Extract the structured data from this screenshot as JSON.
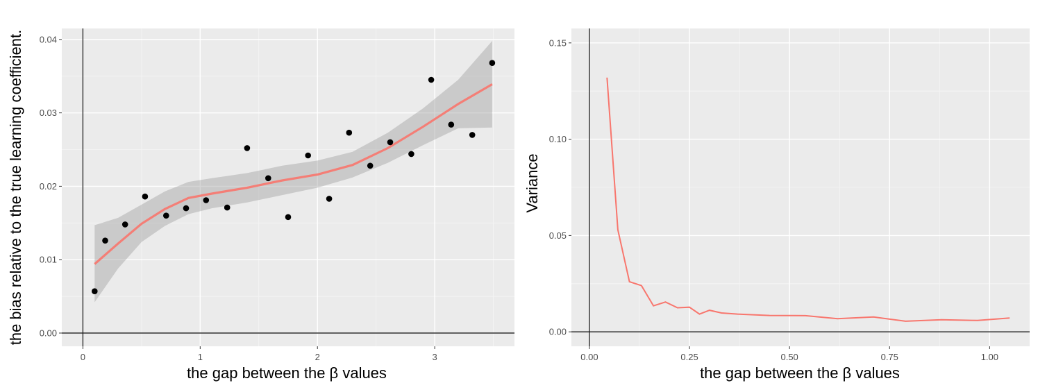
{
  "chart_data": [
    {
      "type": "scatter",
      "xlabel": "the gap between the β values",
      "ylabel": "the bias relative to the true learning coefficient.",
      "xlim": [
        -0.18,
        3.68
      ],
      "ylim": [
        -0.0018,
        0.0415
      ],
      "x_ticks": [
        0,
        1,
        2,
        3
      ],
      "x_tick_labels": [
        "0",
        "1",
        "2",
        "3"
      ],
      "y_ticks": [
        0,
        0.01,
        0.02,
        0.03,
        0.04
      ],
      "y_tick_labels": [
        "0.00",
        "0.01",
        "0.02",
        "0.03",
        "0.04"
      ],
      "colors": {
        "smooth": "#f8766d",
        "ribbon": "#999999",
        "points": "#000000"
      },
      "series": [
        {
          "name": "points",
          "x": [
            0.1,
            0.19,
            0.36,
            0.53,
            0.71,
            0.88,
            1.05,
            1.23,
            1.4,
            1.58,
            1.75,
            1.92,
            2.1,
            2.27,
            2.45,
            2.62,
            2.8,
            2.97,
            3.14,
            3.32,
            3.49
          ],
          "y": [
            0.0057,
            0.0126,
            0.0148,
            0.0186,
            0.016,
            0.017,
            0.0181,
            0.0171,
            0.0252,
            0.0211,
            0.0158,
            0.0242,
            0.0183,
            0.0273,
            0.0228,
            0.026,
            0.0244,
            0.0345,
            0.0284,
            0.027,
            0.0368
          ]
        },
        {
          "name": "smooth",
          "x": [
            0.1,
            0.3,
            0.5,
            0.7,
            0.9,
            1.1,
            1.4,
            1.7,
            2.0,
            2.3,
            2.6,
            2.9,
            3.2,
            3.49
          ],
          "y": [
            0.0094,
            0.0122,
            0.0149,
            0.0169,
            0.0184,
            0.019,
            0.0198,
            0.0208,
            0.0216,
            0.0229,
            0.0252,
            0.0281,
            0.0312,
            0.0339
          ],
          "lower": [
            0.0042,
            0.0088,
            0.0124,
            0.0146,
            0.0162,
            0.017,
            0.0178,
            0.0188,
            0.0198,
            0.0212,
            0.0232,
            0.0256,
            0.0279,
            0.028
          ],
          "upper": [
            0.0147,
            0.0157,
            0.0175,
            0.0193,
            0.0206,
            0.0211,
            0.0218,
            0.0228,
            0.0235,
            0.0247,
            0.0273,
            0.0306,
            0.0345,
            0.0398
          ]
        }
      ]
    },
    {
      "type": "line",
      "xlabel": "the gap between the β values",
      "ylabel": "Variance",
      "xlim": [
        -0.045,
        1.1
      ],
      "ylim": [
        -0.0075,
        0.1575
      ],
      "x_ticks": [
        0,
        0.25,
        0.5,
        0.75,
        1.0
      ],
      "x_tick_labels": [
        "0.00",
        "0.25",
        "0.50",
        "0.75",
        "1.00"
      ],
      "y_ticks": [
        0,
        0.05,
        0.1,
        0.15
      ],
      "y_tick_labels": [
        "0.00",
        "0.05",
        "0.10",
        "0.15"
      ],
      "colors": {
        "line": "#f8766d"
      },
      "series": [
        {
          "name": "variance",
          "x": [
            0.044,
            0.071,
            0.1,
            0.13,
            0.16,
            0.19,
            0.22,
            0.25,
            0.275,
            0.3,
            0.33,
            0.37,
            0.45,
            0.54,
            0.62,
            0.71,
            0.79,
            0.88,
            0.97,
            1.05
          ],
          "y": [
            0.132,
            0.053,
            0.026,
            0.024,
            0.0135,
            0.0155,
            0.0125,
            0.0128,
            0.0092,
            0.0112,
            0.0098,
            0.0092,
            0.0085,
            0.0084,
            0.0068,
            0.0077,
            0.0055,
            0.0063,
            0.0059,
            0.0072
          ]
        }
      ]
    }
  ]
}
